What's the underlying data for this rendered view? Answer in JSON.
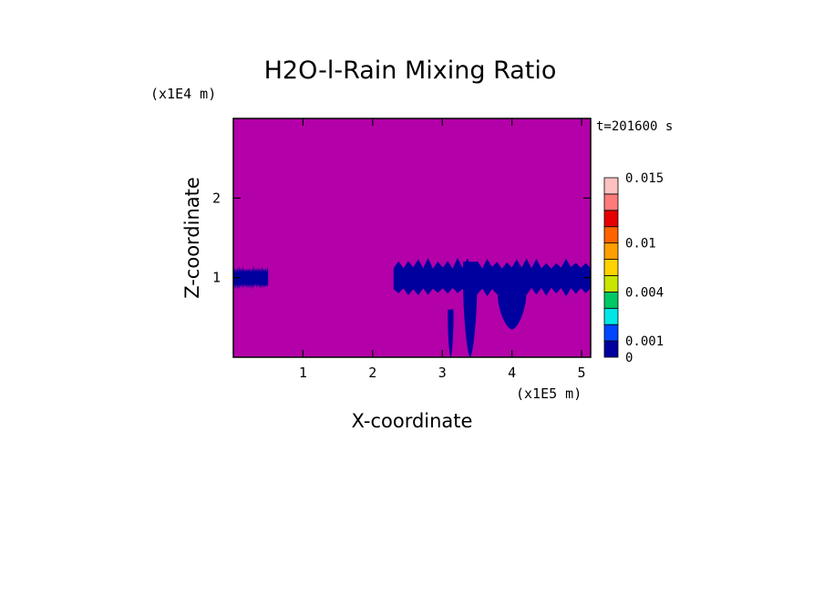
{
  "chart_data": {
    "type": "heatmap",
    "title": "H2O-l-Rain Mixing Ratio",
    "time_label": "t=201600 s",
    "xlabel": "X-coordinate",
    "ylabel": "Z-coordinate",
    "x_unit_label": "(x1E5 m)",
    "y_unit_label": "(x1E4 m)",
    "xlim": [
      0,
      5.13
    ],
    "ylim": [
      0,
      3.0
    ],
    "x_ticks": [
      1,
      2,
      3,
      4,
      5
    ],
    "x_tick_labels": [
      "1",
      "2",
      "3",
      "4",
      "5"
    ],
    "y_ticks": [
      1,
      2
    ],
    "y_tick_labels": [
      "1",
      "2"
    ],
    "background_level_color": "#b400a8",
    "colorbar": {
      "levels": [
        0,
        0.001,
        0.002,
        0.003,
        0.004,
        0.006,
        0.008,
        0.01,
        0.012,
        0.014,
        0.015
      ],
      "colors": [
        "#00009e",
        "#0046ff",
        "#00e6e6",
        "#00c864",
        "#c8e600",
        "#ffd200",
        "#ffa000",
        "#ff6400",
        "#e60000",
        "#ff7a7a",
        "#ffc0c0"
      ],
      "tick_values": [
        0,
        0.001,
        0.004,
        0.01,
        0.015
      ],
      "tick_labels": [
        "0",
        "0.001",
        "0.004",
        "0.01",
        "0.015"
      ]
    },
    "features": [
      {
        "kind": "cloud-band",
        "x": [
          0.0,
          0.5
        ],
        "z": [
          0.85,
          1.15
        ],
        "value": "0-0.001"
      },
      {
        "kind": "cloud-band",
        "x": [
          2.3,
          5.13
        ],
        "z": [
          0.75,
          1.25
        ],
        "value": "0-0.001"
      },
      {
        "kind": "rain-shaft",
        "x": [
          3.3,
          3.5
        ],
        "z": [
          0.0,
          1.2
        ],
        "value": "0-0.001"
      },
      {
        "kind": "rain-shaft",
        "x": [
          3.08,
          3.16
        ],
        "z": [
          0.0,
          0.6
        ],
        "value": "0-0.001"
      },
      {
        "kind": "rain-shaft",
        "x": [
          3.8,
          4.2
        ],
        "z": [
          0.35,
          0.9
        ],
        "value": "0-0.001"
      }
    ]
  }
}
